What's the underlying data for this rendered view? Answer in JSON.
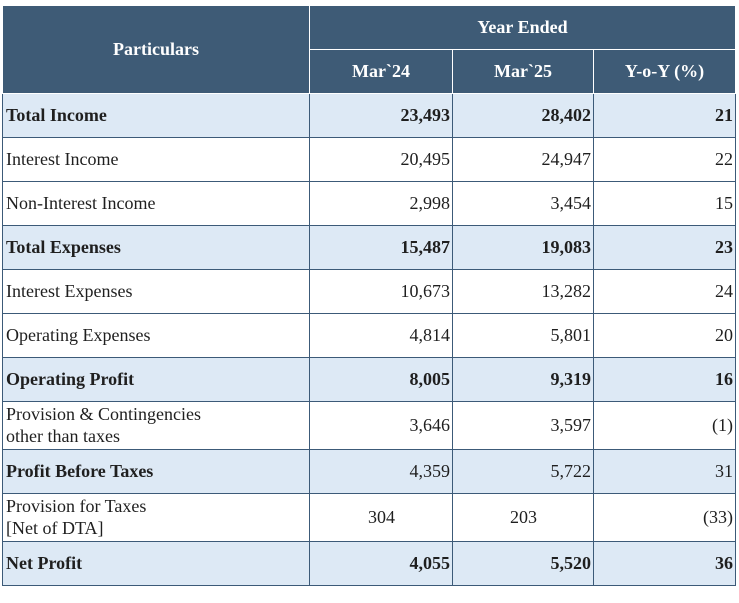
{
  "header": {
    "particulars": "Particulars",
    "group": "Year Ended",
    "col1": "Mar`24",
    "col2": "Mar`25",
    "col3": "Y-o-Y (%)"
  },
  "rows": [
    {
      "label": "Total Income",
      "mar24": "23,493",
      "mar25": "28,402",
      "yoy": "21"
    },
    {
      "label": "Interest Income",
      "mar24": "20,495",
      "mar25": "24,947",
      "yoy": "22"
    },
    {
      "label": "Non-Interest Income",
      "mar24": "2,998",
      "mar25": "3,454",
      "yoy": "15"
    },
    {
      "label": "Total Expenses",
      "mar24": "15,487",
      "mar25": "19,083",
      "yoy": "23"
    },
    {
      "label": "Interest Expenses",
      "mar24": "10,673",
      "mar25": "13,282",
      "yoy": "24"
    },
    {
      "label": "Operating Expenses",
      "mar24": "4,814",
      "mar25": "5,801",
      "yoy": "20"
    },
    {
      "label": "Operating Profit",
      "mar24": "8,005",
      "mar25": "9,319",
      "yoy": "16"
    },
    {
      "label_line1": "Provision & Contingencies",
      "label_line2": "other than taxes",
      "mar24": "3,646",
      "mar25": "3,597",
      "yoy": "(1)"
    },
    {
      "label": "Profit Before Taxes",
      "mar24": "4,359",
      "mar25": "5,722",
      "yoy": "31"
    },
    {
      "label_line1": "Provision for Taxes",
      "label_line2": "[Net of DTA]",
      "mar24": "304",
      "mar25": "203",
      "yoy": "(33)"
    },
    {
      "label": "Net Profit",
      "mar24": "4,055",
      "mar25": "5,520",
      "yoy": "36"
    }
  ]
}
